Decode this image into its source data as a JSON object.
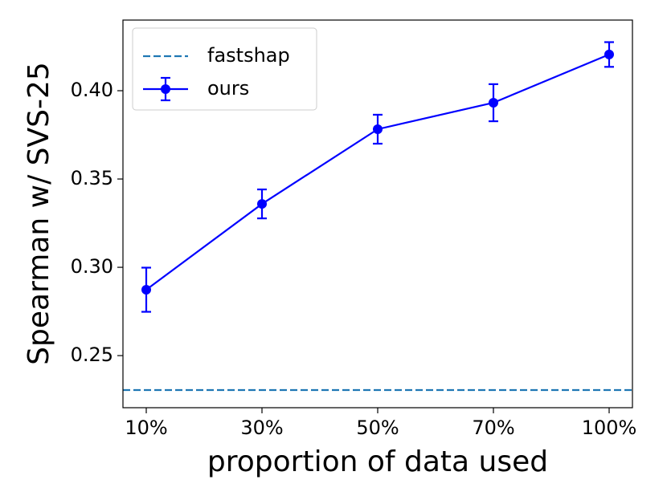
{
  "chart_data": {
    "type": "line",
    "x_label": "proportion of data used",
    "y_label": "Spearman w/ SVS-25",
    "categories": [
      "10%",
      "30%",
      "50%",
      "70%",
      "100%"
    ],
    "ylim": [
      0.2205,
      0.44
    ],
    "yticks": [
      0.25,
      {
        "value": 0.3,
        "label": "0.30"
      },
      0.35,
      {
        "value": 0.4,
        "label": "0.40"
      }
    ],
    "legend": "upper left",
    "series": [
      {
        "name": "fastshap",
        "color": "#1f77b4",
        "linestyle": "dashed",
        "value": 0.2305
      },
      {
        "name": "ours",
        "color": "#0000ff",
        "linestyle": "solid",
        "marker": "circle",
        "values": [
          0.2873,
          0.3359,
          0.3782,
          0.3932,
          0.4205
        ],
        "errors": [
          0.0125,
          0.0082,
          0.0082,
          0.0105,
          0.007
        ]
      }
    ]
  }
}
